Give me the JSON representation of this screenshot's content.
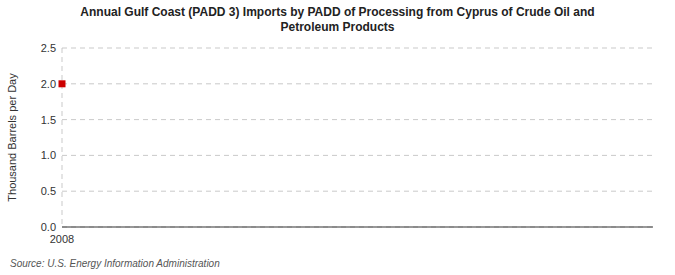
{
  "chart_data": {
    "type": "scatter",
    "title": "Annual Gulf Coast (PADD 3) Imports by PADD of Processing from Cyprus of Crude Oil and\nPetroleum Products",
    "ylabel": "Thousand Barrels per Day",
    "source": "Source: U.S. Energy Information Administration",
    "x": [
      2008
    ],
    "values": [
      2.0
    ],
    "color": "#cc0000",
    "marker": "square",
    "xlim": [
      2008,
      2017
    ],
    "ylim": [
      0.0,
      2.5
    ],
    "xticks": [
      2008
    ],
    "yticks": [
      {
        "value": 0.0,
        "label": "0.0"
      },
      0.5,
      {
        "value": 1.0,
        "label": "1.0"
      },
      1.5,
      {
        "value": 2.0,
        "label": "2.0"
      },
      2.5
    ],
    "grid": true
  }
}
